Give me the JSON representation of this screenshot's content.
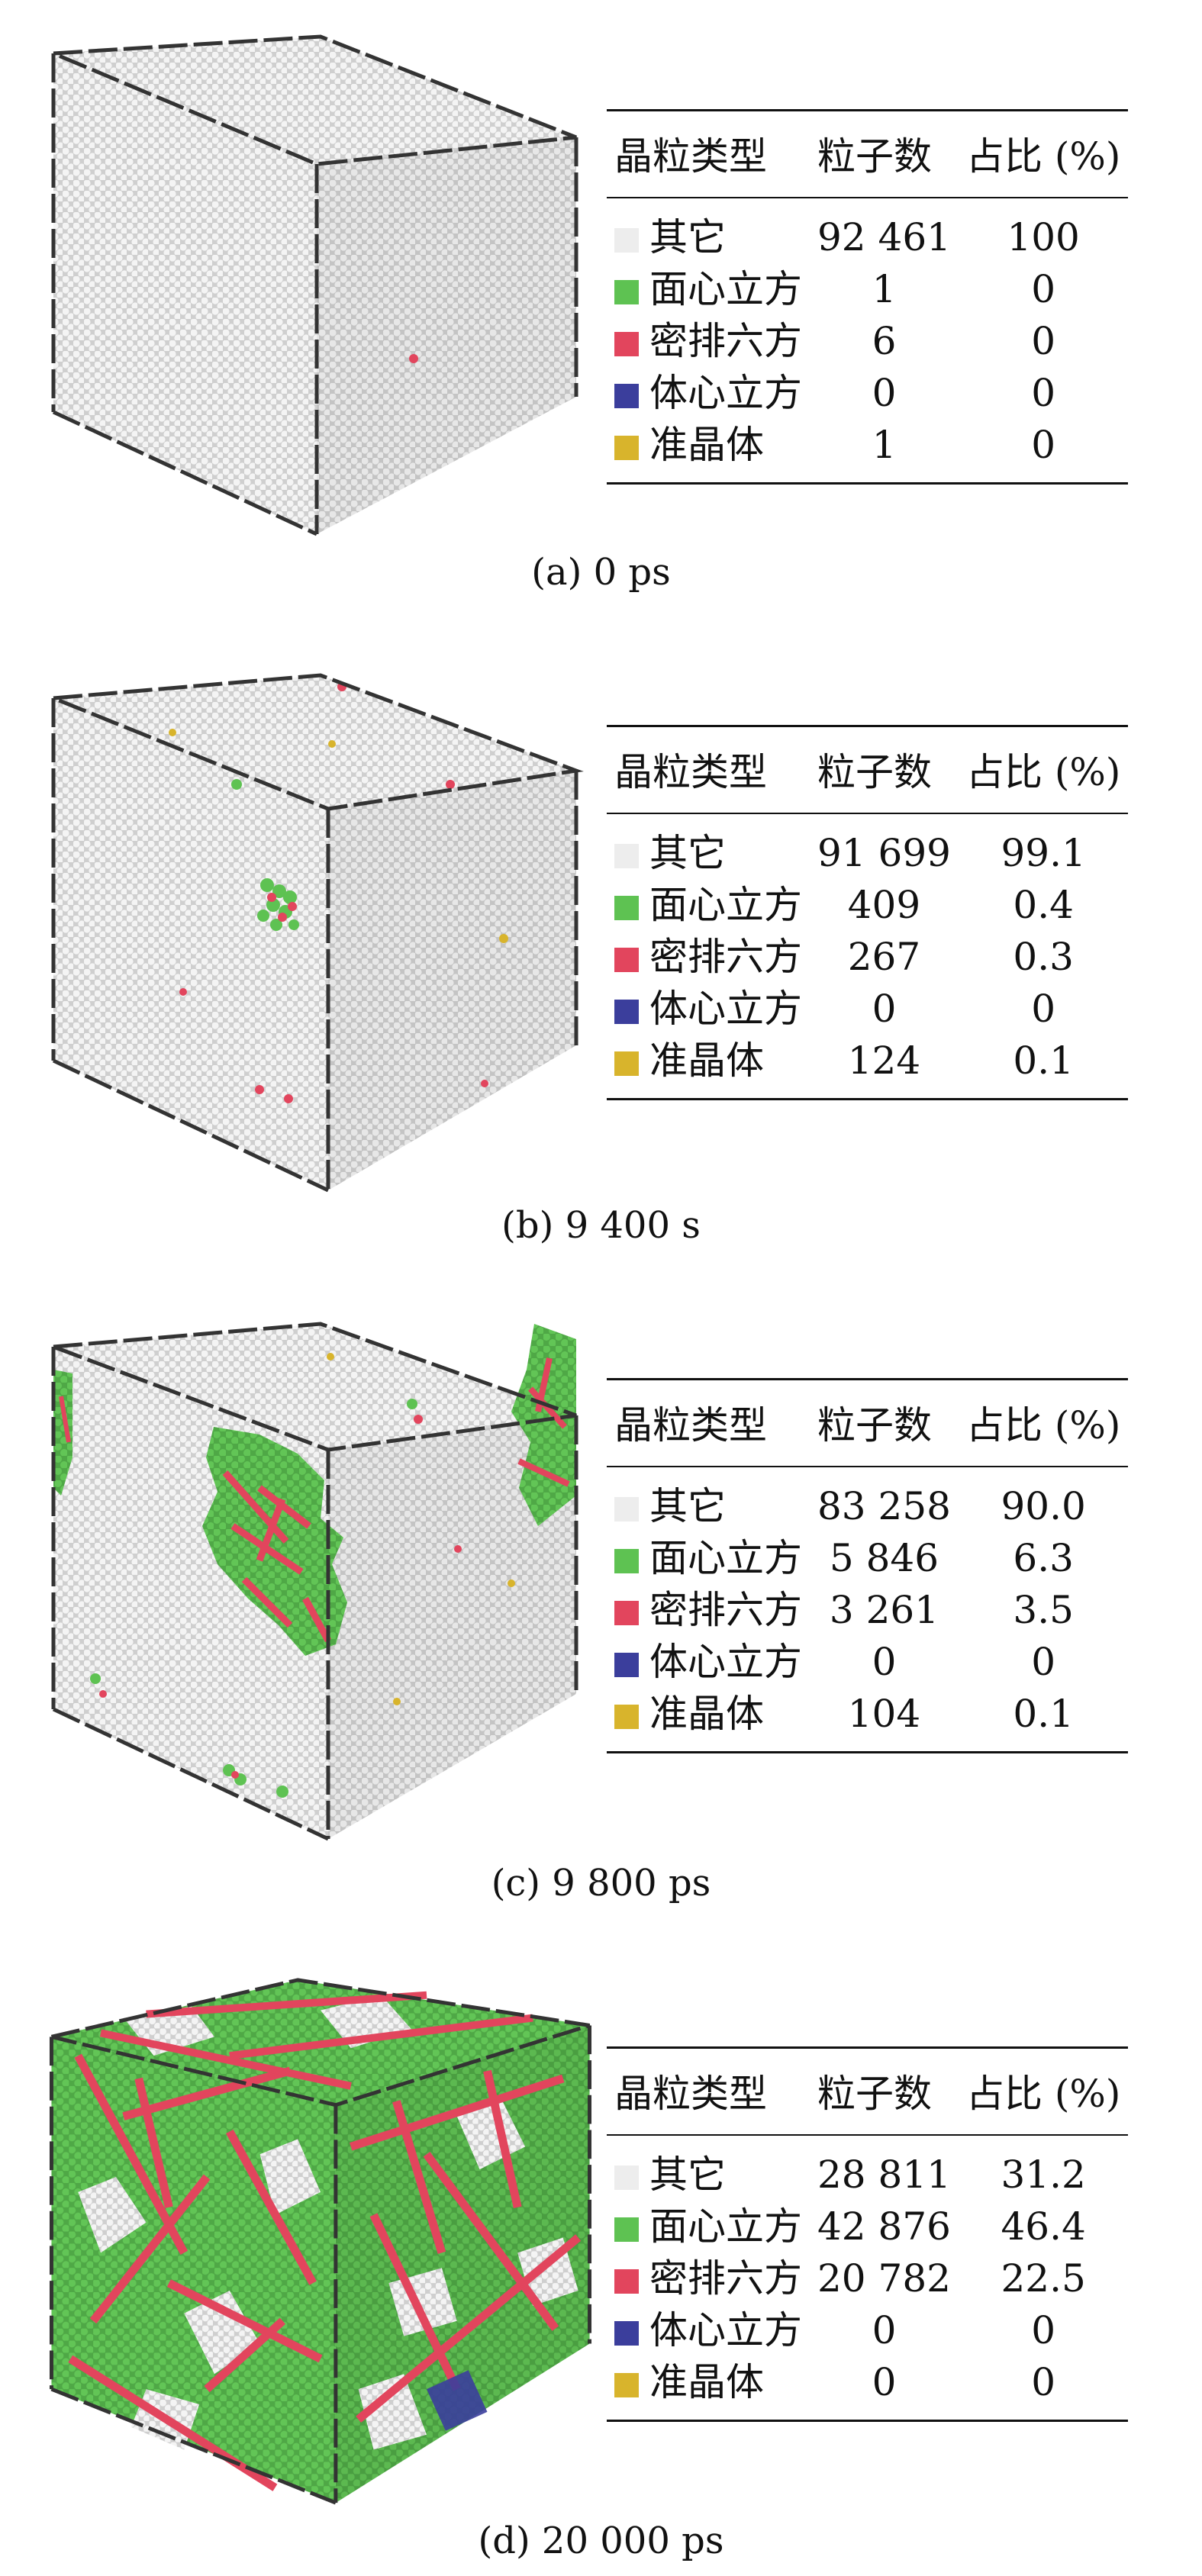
{
  "colors": {
    "other": "#ededed",
    "fcc": "#5ec252",
    "hcp": "#e2455d",
    "bcc": "#3b3e9c",
    "quasicrystal": "#d8b42c"
  },
  "panels": [
    {
      "caption": "(a)  0 ps",
      "headers": [
        "晶粒类型",
        "粒子数",
        "占比 (%)"
      ],
      "rows": [
        {
          "type": "其它",
          "count": "92 461",
          "pct": "100",
          "color_key": "other"
        },
        {
          "type": "面心立方",
          "count": "1",
          "pct": "0",
          "color_key": "fcc"
        },
        {
          "type": "密排六方",
          "count": "6",
          "pct": "0",
          "color_key": "hcp"
        },
        {
          "type": "体心立方",
          "count": "0",
          "pct": "0",
          "color_key": "bcc"
        },
        {
          "type": "准晶体",
          "count": "1",
          "pct": "0",
          "color_key": "quasicrystal"
        }
      ]
    },
    {
      "caption": "(b) 9 400 s",
      "headers": [
        "晶粒类型",
        "粒子数",
        "占比 (%)"
      ],
      "rows": [
        {
          "type": "其它",
          "count": "91 699",
          "pct": "99.1",
          "color_key": "other"
        },
        {
          "type": "面心立方",
          "count": "409",
          "pct": "0.4",
          "color_key": "fcc"
        },
        {
          "type": "密排六方",
          "count": "267",
          "pct": "0.3",
          "color_key": "hcp"
        },
        {
          "type": "体心立方",
          "count": "0",
          "pct": "0",
          "color_key": "bcc"
        },
        {
          "type": "准晶体",
          "count": "124",
          "pct": "0.1",
          "color_key": "quasicrystal"
        }
      ]
    },
    {
      "caption": "(c) 9 800 ps",
      "headers": [
        "晶粒类型",
        "粒子数",
        "占比 (%)"
      ],
      "rows": [
        {
          "type": "其它",
          "count": "83 258",
          "pct": "90.0",
          "color_key": "other"
        },
        {
          "type": "面心立方",
          "count": "5 846",
          "pct": "6.3",
          "color_key": "fcc"
        },
        {
          "type": "密排六方",
          "count": "3 261",
          "pct": "3.5",
          "color_key": "hcp"
        },
        {
          "type": "体心立方",
          "count": "0",
          "pct": "0",
          "color_key": "bcc"
        },
        {
          "type": "准晶体",
          "count": "104",
          "pct": "0.1",
          "color_key": "quasicrystal"
        }
      ]
    },
    {
      "caption": "(d) 20 000 ps",
      "headers": [
        "晶粒类型",
        "粒子数",
        "占比 (%)"
      ],
      "rows": [
        {
          "type": "其它",
          "count": "28 811",
          "pct": "31.2",
          "color_key": "other"
        },
        {
          "type": "面心立方",
          "count": "42 876",
          "pct": "46.4",
          "color_key": "fcc"
        },
        {
          "type": "密排六方",
          "count": "20 782",
          "pct": "22.5",
          "color_key": "hcp"
        },
        {
          "type": "体心立方",
          "count": "0",
          "pct": "0",
          "color_key": "bcc"
        },
        {
          "type": "准晶体",
          "count": "0",
          "pct": "0",
          "color_key": "quasicrystal"
        }
      ]
    }
  ]
}
